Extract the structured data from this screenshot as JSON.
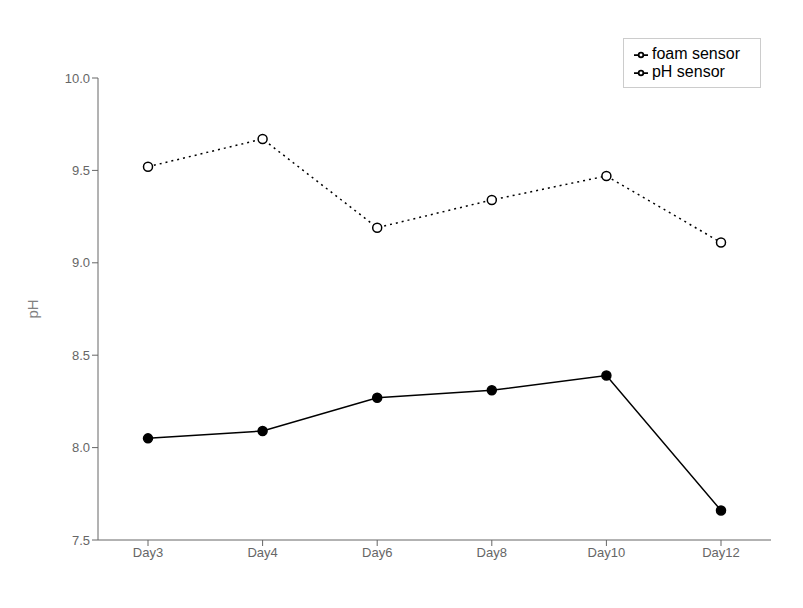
{
  "chart_data": {
    "type": "line",
    "categories": [
      "Day3",
      "Day4",
      "Day6",
      "Day8",
      "Day10",
      "Day12"
    ],
    "ylabel": "pH",
    "ylim": [
      7.5,
      10.0
    ],
    "yticks": [
      7.5,
      {
        "value": 8,
        "label": "8.0"
      },
      8.5,
      {
        "value": 9,
        "label": "9.0"
      },
      9.5,
      {
        "value": 10,
        "label": "10.0"
      }
    ],
    "grid": false,
    "legend": "upper right",
    "series": [
      {
        "name": "pH sensor",
        "color": "#000000",
        "values": [
          8.05,
          8.09,
          8.27,
          8.31,
          8.39,
          7.66
        ],
        "marker": "circle",
        "line_style": "solid"
      },
      {
        "name": "foam sensor",
        "color": "#000000",
        "values": [
          9.52,
          9.67,
          9.19,
          9.34,
          9.47,
          9.11
        ],
        "marker": "open_circle",
        "line_style": "dotted"
      }
    ]
  }
}
